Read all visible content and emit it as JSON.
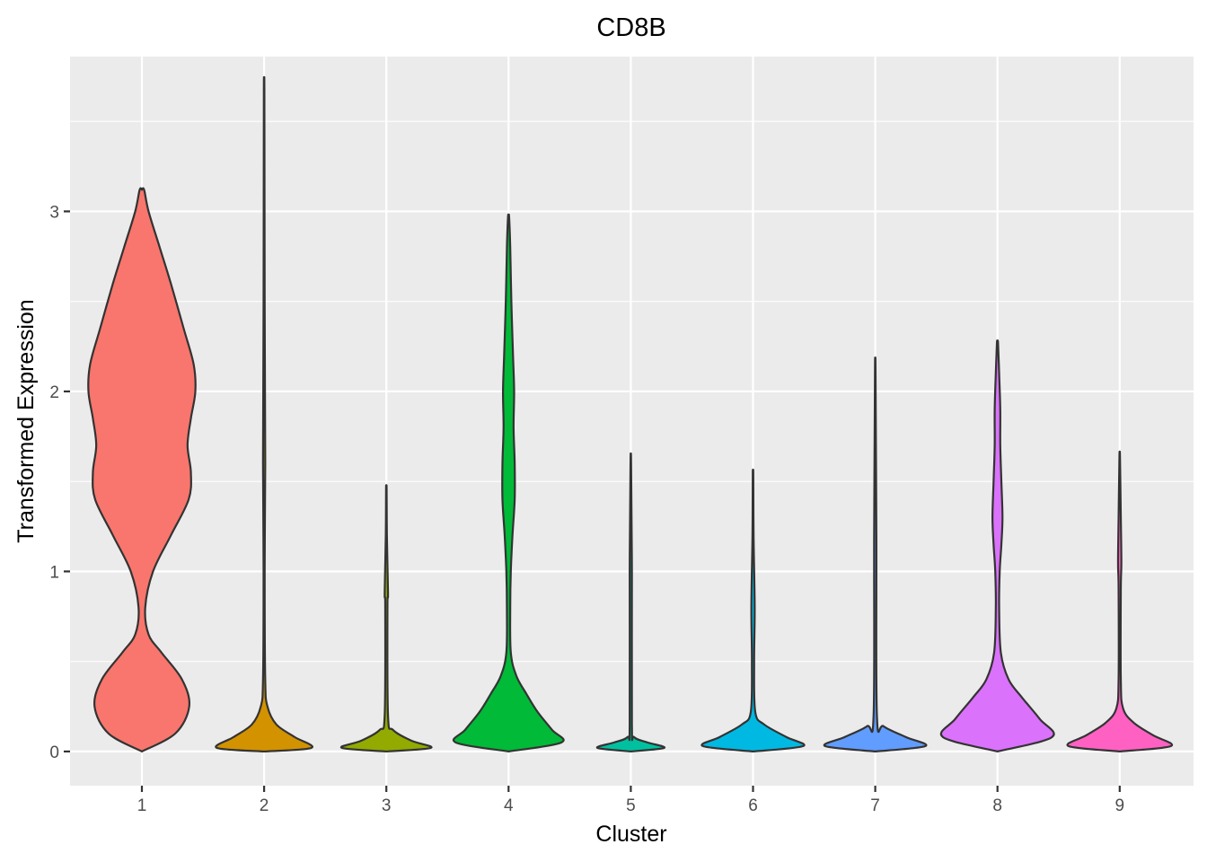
{
  "chart_data": {
    "type": "violin",
    "title": "CD8B",
    "xlabel": "Cluster",
    "ylabel": "Transformed Expression",
    "ylim": [
      -0.19,
      3.86
    ],
    "y_ticks": [
      0,
      1,
      2,
      3
    ],
    "y_tick_labels": [
      "0",
      "1",
      "2",
      "3"
    ],
    "categories": [
      "1",
      "2",
      "3",
      "4",
      "5",
      "6",
      "7",
      "8",
      "9"
    ],
    "grid": true,
    "legend": "none",
    "colors": [
      "#F8766D",
      "#D39200",
      "#93AA00",
      "#00BA38",
      "#00C19F",
      "#00B9E3",
      "#619CFF",
      "#DB72FB",
      "#FF61C3"
    ],
    "panel_background": "#EBEBEB",
    "series": [
      {
        "cluster": "1",
        "max": 3.12,
        "profile": [
          [
            0,
            0.0
          ],
          [
            0.1,
            0.6
          ],
          [
            0.25,
            0.85
          ],
          [
            0.4,
            0.72
          ],
          [
            0.55,
            0.35
          ],
          [
            0.65,
            0.12
          ],
          [
            0.8,
            0.06
          ],
          [
            1.0,
            0.2
          ],
          [
            1.2,
            0.52
          ],
          [
            1.4,
            0.84
          ],
          [
            1.55,
            0.88
          ],
          [
            1.7,
            0.82
          ],
          [
            1.85,
            0.88
          ],
          [
            2.0,
            0.96
          ],
          [
            2.15,
            0.93
          ],
          [
            2.35,
            0.75
          ],
          [
            2.6,
            0.52
          ],
          [
            2.8,
            0.32
          ],
          [
            3.0,
            0.12
          ],
          [
            3.12,
            0.04
          ]
        ]
      },
      {
        "cluster": "2",
        "max": 3.66,
        "profile": [
          [
            0,
            0.0
          ],
          [
            0.02,
            0.85
          ],
          [
            0.08,
            0.55
          ],
          [
            0.15,
            0.22
          ],
          [
            0.25,
            0.06
          ],
          [
            0.4,
            0.02
          ],
          [
            1.0,
            0.01
          ],
          [
            1.6,
            0.02
          ],
          [
            2.5,
            0.01
          ],
          [
            3.66,
            0.005
          ]
        ]
      },
      {
        "cluster": "3",
        "max": 1.46,
        "profile": [
          [
            0,
            0.0
          ],
          [
            0.02,
            0.8
          ],
          [
            0.06,
            0.45
          ],
          [
            0.12,
            0.12
          ],
          [
            0.2,
            0.03
          ],
          [
            0.8,
            0.02
          ],
          [
            0.88,
            0.03
          ],
          [
            1.2,
            0.01
          ],
          [
            1.46,
            0.005
          ]
        ]
      },
      {
        "cluster": "4",
        "max": 2.97,
        "profile": [
          [
            0,
            0.0
          ],
          [
            0.05,
            0.95
          ],
          [
            0.12,
            0.78
          ],
          [
            0.22,
            0.52
          ],
          [
            0.32,
            0.32
          ],
          [
            0.42,
            0.14
          ],
          [
            0.55,
            0.04
          ],
          [
            0.8,
            0.03
          ],
          [
            1.0,
            0.04
          ],
          [
            1.2,
            0.07
          ],
          [
            1.4,
            0.11
          ],
          [
            1.6,
            0.11
          ],
          [
            1.8,
            0.09
          ],
          [
            2.0,
            0.1
          ],
          [
            2.2,
            0.08
          ],
          [
            2.5,
            0.05
          ],
          [
            2.8,
            0.03
          ],
          [
            2.97,
            0.01
          ]
        ]
      },
      {
        "cluster": "5",
        "max": 1.61,
        "profile": [
          [
            0,
            0.0
          ],
          [
            0.02,
            0.6
          ],
          [
            0.05,
            0.3
          ],
          [
            0.08,
            0.06
          ],
          [
            0.15,
            0.02
          ],
          [
            1.0,
            0.02
          ],
          [
            1.61,
            0.005
          ]
        ]
      },
      {
        "cluster": "6",
        "max": 1.54,
        "profile": [
          [
            0,
            0.0
          ],
          [
            0.03,
            0.9
          ],
          [
            0.08,
            0.6
          ],
          [
            0.15,
            0.2
          ],
          [
            0.22,
            0.04
          ],
          [
            0.5,
            0.02
          ],
          [
            0.8,
            0.03
          ],
          [
            1.2,
            0.01
          ],
          [
            1.54,
            0.005
          ]
        ]
      },
      {
        "cluster": "7",
        "max": 2.12,
        "profile": [
          [
            0,
            0.0
          ],
          [
            0.03,
            0.9
          ],
          [
            0.08,
            0.55
          ],
          [
            0.14,
            0.15
          ],
          [
            0.2,
            0.03
          ],
          [
            1.2,
            0.02
          ],
          [
            2.12,
            0.005
          ]
        ]
      },
      {
        "cluster": "8",
        "max": 2.27,
        "profile": [
          [
            0,
            0.0
          ],
          [
            0.08,
            0.98
          ],
          [
            0.18,
            0.76
          ],
          [
            0.3,
            0.44
          ],
          [
            0.4,
            0.2
          ],
          [
            0.55,
            0.06
          ],
          [
            0.8,
            0.03
          ],
          [
            1.0,
            0.04
          ],
          [
            1.15,
            0.07
          ],
          [
            1.3,
            0.09
          ],
          [
            1.5,
            0.07
          ],
          [
            1.7,
            0.05
          ],
          [
            1.9,
            0.05
          ],
          [
            2.1,
            0.03
          ],
          [
            2.27,
            0.01
          ]
        ]
      },
      {
        "cluster": "9",
        "max": 1.64,
        "profile": [
          [
            0,
            0.0
          ],
          [
            0.03,
            0.92
          ],
          [
            0.09,
            0.6
          ],
          [
            0.16,
            0.25
          ],
          [
            0.24,
            0.06
          ],
          [
            0.4,
            0.02
          ],
          [
            0.9,
            0.02
          ],
          [
            1.05,
            0.03
          ],
          [
            1.3,
            0.02
          ],
          [
            1.64,
            0.005
          ]
        ]
      }
    ]
  }
}
